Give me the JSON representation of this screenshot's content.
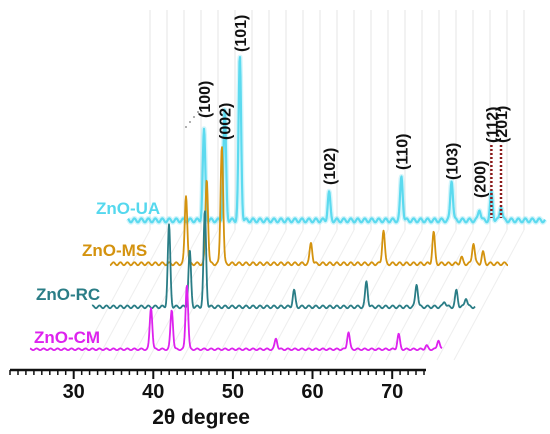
{
  "chart_data": {
    "type": "line",
    "title": "",
    "xlabel": "2θ degree",
    "ylabel": "",
    "xlim": [
      22,
      74
    ],
    "xticks": [
      "30",
      "40",
      "50",
      "60",
      "70"
    ],
    "grid": false,
    "legend": "inline labels on the left of each offset pattern",
    "series": [
      {
        "name": "ZnO-UA",
        "color": "#55d8ee",
        "peaks": [
          {
            "x": 31.8,
            "h": 0.55
          },
          {
            "x": 34.4,
            "h": 0.68
          },
          {
            "x": 36.3,
            "h": 1.0
          },
          {
            "x": 47.5,
            "h": 0.17
          },
          {
            "x": 56.6,
            "h": 0.27
          },
          {
            "x": 62.9,
            "h": 0.25
          },
          {
            "x": 66.4,
            "h": 0.07
          },
          {
            "x": 67.9,
            "h": 0.17
          },
          {
            "x": 69.1,
            "h": 0.09
          }
        ]
      },
      {
        "name": "ZnO-MS",
        "color": "#d4930f",
        "peaks": [
          {
            "x": 31.8,
            "h": 0.55
          },
          {
            "x": 34.4,
            "h": 0.68
          },
          {
            "x": 36.3,
            "h": 0.95
          },
          {
            "x": 47.5,
            "h": 0.17
          },
          {
            "x": 56.6,
            "h": 0.27
          },
          {
            "x": 62.9,
            "h": 0.25
          },
          {
            "x": 66.4,
            "h": 0.05
          },
          {
            "x": 67.9,
            "h": 0.17
          },
          {
            "x": 69.1,
            "h": 0.09
          }
        ]
      },
      {
        "name": "ZnO-RC",
        "color": "#2a7d86",
        "peaks": [
          {
            "x": 31.8,
            "h": 0.7
          },
          {
            "x": 34.4,
            "h": 0.48
          },
          {
            "x": 36.3,
            "h": 0.82
          },
          {
            "x": 47.5,
            "h": 0.14
          },
          {
            "x": 56.6,
            "h": 0.22
          },
          {
            "x": 62.9,
            "h": 0.2
          },
          {
            "x": 66.4,
            "h": 0.05
          },
          {
            "x": 67.9,
            "h": 0.14
          },
          {
            "x": 69.1,
            "h": 0.08
          }
        ]
      },
      {
        "name": "ZnO-CM",
        "color": "#dd22ee",
        "peaks": [
          {
            "x": 31.8,
            "h": 0.58
          },
          {
            "x": 34.4,
            "h": 0.55
          },
          {
            "x": 36.3,
            "h": 0.9
          },
          {
            "x": 47.5,
            "h": 0.15
          },
          {
            "x": 56.6,
            "h": 0.24
          },
          {
            "x": 62.9,
            "h": 0.21
          },
          {
            "x": 66.4,
            "h": 0.05
          },
          {
            "x": 67.9,
            "h": 0.13
          },
          {
            "x": 69.1,
            "h": 0.07
          }
        ]
      }
    ],
    "annotations": [
      {
        "text": "(100)",
        "x": 31.8
      },
      {
        "text": "(002)",
        "x": 34.4
      },
      {
        "text": "(101)",
        "x": 36.3
      },
      {
        "text": "(102)",
        "x": 47.5
      },
      {
        "text": "(110)",
        "x": 56.6
      },
      {
        "text": "(103)",
        "x": 62.9
      },
      {
        "text": "(112)",
        "x": 67.9,
        "marker": "dotted-line"
      },
      {
        "text": "(200)",
        "x": 66.4
      },
      {
        "text": "(201)",
        "x": 69.1,
        "marker": "dotted-line"
      }
    ],
    "marker_color": "#8b1a1a"
  }
}
